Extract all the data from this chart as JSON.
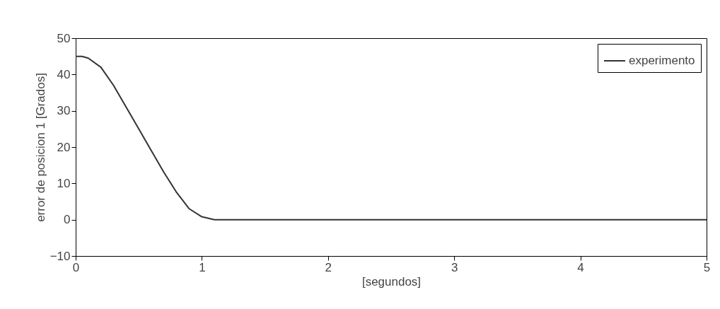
{
  "chart_data": {
    "type": "line",
    "xlabel": "[segundos]",
    "ylabel": "error de posicion 1 [Grados]",
    "series": [
      {
        "name": "experimento",
        "color": "#333333",
        "x": [
          0,
          0.05,
          0.1,
          0.2,
          0.3,
          0.4,
          0.5,
          0.6,
          0.7,
          0.8,
          0.9,
          1.0,
          1.1,
          2,
          3,
          4,
          5
        ],
        "values": [
          45,
          45,
          44.5,
          42,
          37,
          31,
          25,
          19,
          13,
          7.5,
          3,
          0.8,
          0,
          0,
          0,
          0,
          0
        ]
      }
    ],
    "xlim": [
      0,
      5
    ],
    "xticks": [
      0,
      1,
      2,
      3,
      4,
      5
    ],
    "ylim": [
      -10,
      50
    ],
    "yticks": [
      -10,
      0,
      10,
      20,
      30,
      40,
      50
    ],
    "grid": false,
    "legend": "top right",
    "marker": "none",
    "line_style": "solid"
  }
}
